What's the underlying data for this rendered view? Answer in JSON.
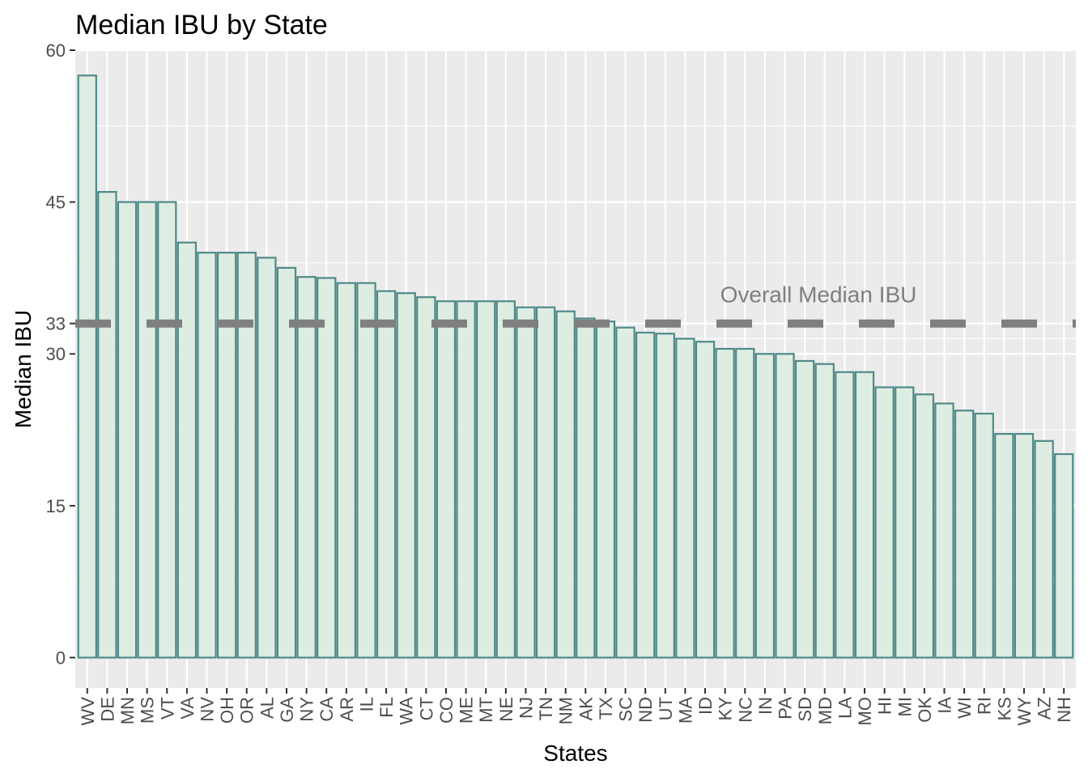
{
  "chart_data": {
    "type": "bar",
    "title": "Median IBU by State",
    "xlabel": "States",
    "ylabel": "Median IBU",
    "ylim": [
      -3,
      60
    ],
    "yticks": [
      0,
      15,
      30,
      33,
      45,
      60
    ],
    "grid": true,
    "categories": [
      "WV",
      "DE",
      "MN",
      "MS",
      "VT",
      "VA",
      "NV",
      "OH",
      "OR",
      "AL",
      "GA",
      "NY",
      "CA",
      "AR",
      "IL",
      "FL",
      "WA",
      "CT",
      "CO",
      "ME",
      "MT",
      "NE",
      "NJ",
      "TN",
      "NM",
      "AK",
      "TX",
      "SC",
      "ND",
      "UT",
      "MA",
      "ID",
      "KY",
      "NC",
      "IN",
      "PA",
      "SD",
      "MD",
      "LA",
      "MO",
      "HI",
      "MI",
      "OK",
      "IA",
      "WI",
      "RI",
      "KS",
      "WY",
      "AZ",
      "NH"
    ],
    "values": [
      57.5,
      46,
      45,
      45,
      45,
      41,
      40,
      40,
      40,
      39.5,
      38.5,
      37.6,
      37.5,
      37,
      37,
      36.2,
      36,
      35.6,
      35.2,
      35.2,
      35.2,
      35.2,
      34.6,
      34.6,
      34.2,
      33.5,
      33.2,
      32.6,
      32.1,
      32,
      31.5,
      31.2,
      30.5,
      30.5,
      30,
      30,
      29.3,
      29,
      28.2,
      28.2,
      26.7,
      26.7,
      26,
      25.1,
      24.4,
      24.1,
      22.1,
      22.1,
      21.4,
      20.1
    ],
    "reference_line": {
      "value": 33,
      "style": "dashed",
      "label": "Overall Median IBU"
    },
    "colors": {
      "bar_fill": "#deede2",
      "bar_stroke": "#4f8a88",
      "panel": "#ebebeb",
      "grid": "#ffffff",
      "reference_line": "#7f7f7f",
      "annotation": "#7f7f7f"
    }
  }
}
